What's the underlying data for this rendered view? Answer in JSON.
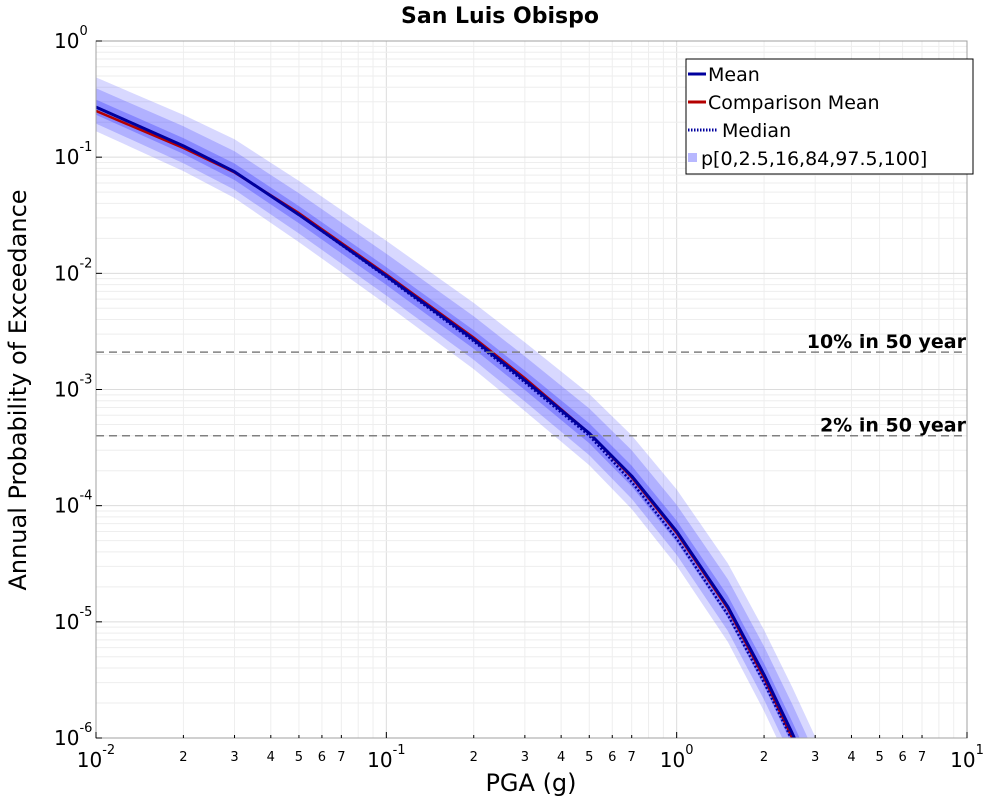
{
  "chart_data": {
    "type": "line",
    "title": "San Luis Obispo",
    "xlabel": "PGA (g)",
    "ylabel": "Annual Probability of Exceedance",
    "xscale": "log",
    "yscale": "log",
    "xlim": [
      0.01,
      10
    ],
    "ylim": [
      1e-06,
      1
    ],
    "grid": true,
    "legend_position": "top-right",
    "x_ticks": [
      {
        "base": "10",
        "exp": "-2",
        "value": 0.01
      },
      {
        "base": "10",
        "exp": "-1",
        "value": 0.1
      },
      {
        "base": "10",
        "exp": "0",
        "value": 1
      },
      {
        "base": "10",
        "exp": "1",
        "value": 10
      }
    ],
    "x_minor_ticks": [
      {
        "label": "2",
        "value": 0.02
      },
      {
        "label": "3",
        "value": 0.03
      },
      {
        "label": "4",
        "value": 0.04
      },
      {
        "label": "5",
        "value": 0.05
      },
      {
        "label": "6",
        "value": 0.06
      },
      {
        "label": "7",
        "value": 0.07
      },
      {
        "label": "2",
        "value": 0.2
      },
      {
        "label": "3",
        "value": 0.3
      },
      {
        "label": "4",
        "value": 0.4
      },
      {
        "label": "5",
        "value": 0.5
      },
      {
        "label": "6",
        "value": 0.6
      },
      {
        "label": "7",
        "value": 0.7
      },
      {
        "label": "2",
        "value": 2
      },
      {
        "label": "3",
        "value": 3
      },
      {
        "label": "4",
        "value": 4
      },
      {
        "label": "5",
        "value": 5
      },
      {
        "label": "6",
        "value": 6
      },
      {
        "label": "7",
        "value": 7
      }
    ],
    "y_ticks": [
      {
        "base": "10",
        "exp": "0",
        "value": 1
      },
      {
        "base": "10",
        "exp": "-1",
        "value": 0.1
      },
      {
        "base": "10",
        "exp": "-2",
        "value": 0.01
      },
      {
        "base": "10",
        "exp": "-3",
        "value": 0.001
      },
      {
        "base": "10",
        "exp": "-4",
        "value": 0.0001
      },
      {
        "base": "10",
        "exp": "-5",
        "value": 1e-05
      },
      {
        "base": "10",
        "exp": "-6",
        "value": 1e-06
      }
    ],
    "pga": [
      0.01,
      0.02,
      0.03,
      0.05,
      0.1,
      0.2,
      0.3,
      0.5,
      0.7,
      1.0,
      1.5,
      2.0,
      2.5,
      3.0
    ],
    "series": [
      {
        "name": "Mean",
        "color": "#00009e",
        "style": "solid",
        "values": [
          0.27,
          0.125,
          0.075,
          0.032,
          0.0095,
          0.0027,
          0.0012,
          0.00042,
          0.00018,
          6e-05,
          1.35e-05,
          3.5e-06,
          1.1e-06,
          4e-07
        ]
      },
      {
        "name": "Comparison Mean",
        "color": "#b40000",
        "style": "solid",
        "values": [
          0.25,
          0.12,
          0.074,
          0.033,
          0.0098,
          0.0028,
          0.00125,
          0.00042,
          0.000175,
          5.8e-05,
          1.3e-05,
          3.3e-06,
          1e-06,
          3.7e-07
        ]
      },
      {
        "name": "Median",
        "color": "#00009e",
        "style": "dotted",
        "values": [
          0.27,
          0.125,
          0.075,
          0.032,
          0.0093,
          0.0026,
          0.00115,
          0.0004,
          0.00016,
          5.2e-05,
          1.15e-05,
          3e-06,
          9.5e-07,
          3.4e-07
        ]
      }
    ],
    "percentile_bands": {
      "name": "p[0,2.5,16,84,97.5,100]",
      "color": "#4d4dff",
      "bands": [
        {
          "percentiles": [
            0,
            100
          ],
          "lower_factor": 0.62,
          "upper_factor": 1.8
        },
        {
          "percentiles": [
            2.5,
            97.5
          ],
          "lower_factor": 0.72,
          "upper_factor": 1.45
        },
        {
          "percentiles": [
            16,
            84
          ],
          "lower_factor": 0.86,
          "upper_factor": 1.16
        }
      ]
    },
    "reference_lines": [
      {
        "label": "10% in 50 year",
        "value": 0.0021
      },
      {
        "label": "2% in 50 year",
        "value": 0.0004
      }
    ]
  }
}
